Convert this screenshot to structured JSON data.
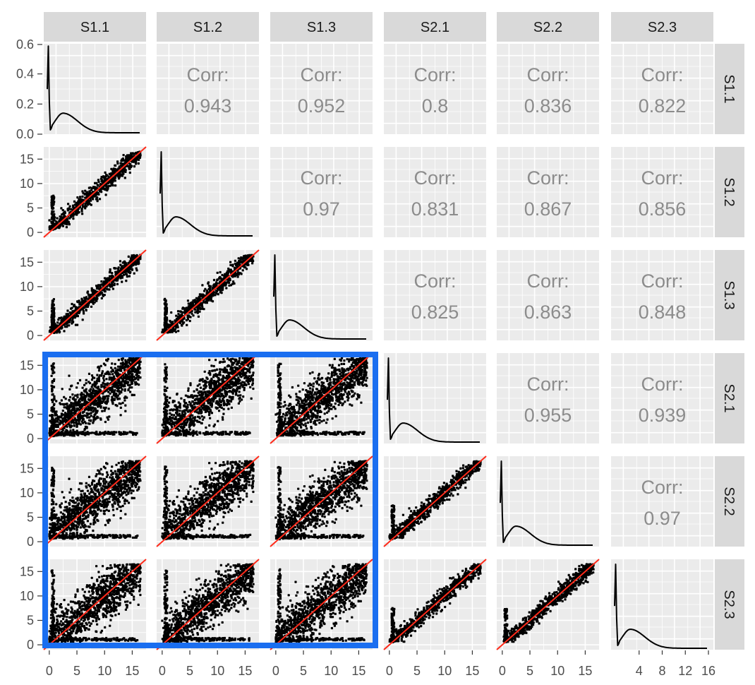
{
  "chart_data": {
    "type": "scatter",
    "variables": [
      "S1.1",
      "S1.2",
      "S1.3",
      "S2.1",
      "S2.2",
      "S2.3"
    ],
    "corr_label": "Corr:",
    "correlations": [
      {
        "row": "S1.1",
        "col": "S1.2",
        "value": "0.943"
      },
      {
        "row": "S1.1",
        "col": "S1.3",
        "value": "0.952"
      },
      {
        "row": "S1.1",
        "col": "S2.1",
        "value": "0.8"
      },
      {
        "row": "S1.1",
        "col": "S2.2",
        "value": "0.836"
      },
      {
        "row": "S1.1",
        "col": "S2.3",
        "value": "0.822"
      },
      {
        "row": "S1.2",
        "col": "S1.3",
        "value": "0.97"
      },
      {
        "row": "S1.2",
        "col": "S2.1",
        "value": "0.831"
      },
      {
        "row": "S1.2",
        "col": "S2.2",
        "value": "0.867"
      },
      {
        "row": "S1.2",
        "col": "S2.3",
        "value": "0.856"
      },
      {
        "row": "S1.3",
        "col": "S2.1",
        "value": "0.825"
      },
      {
        "row": "S1.3",
        "col": "S2.2",
        "value": "0.863"
      },
      {
        "row": "S1.3",
        "col": "S2.3",
        "value": "0.848"
      },
      {
        "row": "S2.1",
        "col": "S2.2",
        "value": "0.955"
      },
      {
        "row": "S2.1",
        "col": "S2.3",
        "value": "0.939"
      },
      {
        "row": "S2.2",
        "col": "S2.3",
        "value": "0.97"
      }
    ],
    "y_axis_density": {
      "range": [
        0,
        0.6
      ],
      "ticks": [
        "0.0",
        "0.2",
        "0.4",
        "0.6"
      ]
    },
    "y_axis_scatter": {
      "range": [
        -1,
        17.5
      ],
      "ticks": [
        "0",
        "5",
        "10",
        "15"
      ]
    },
    "x_axis": {
      "range": [
        -1,
        17.5
      ],
      "ticks": [
        "0",
        "5",
        "10",
        "15"
      ]
    },
    "x_axis_last": {
      "range": [
        0,
        16
      ],
      "ticks": [
        "4",
        "8",
        "12",
        "16"
      ]
    },
    "diagonal_density": "spike near 0 then broad hump peaking near 2-3",
    "reference_line": "y = x",
    "reference_line_color": "#ff2a1a",
    "point_color": "#000000",
    "panel_background": "#ebebeb",
    "strip_background": "#d9d9d9",
    "highlight_box_color": "#1a6ef0",
    "highlight_box_rows": [
      "S2.1",
      "S2.2",
      "S2.3"
    ],
    "highlight_box_cols": [
      "S1.1",
      "S1.2",
      "S1.3"
    ],
    "grid": true
  }
}
